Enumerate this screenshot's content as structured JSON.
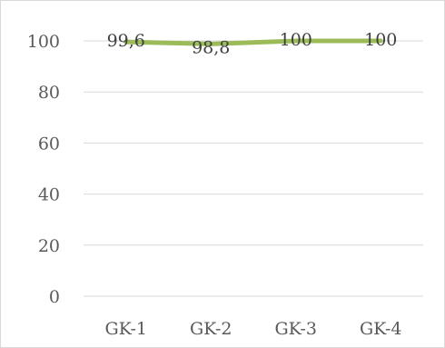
{
  "chart_data": {
    "type": "line",
    "categories": [
      "GK-1",
      "GK-2",
      "GK-3",
      "GK-4"
    ],
    "series": [
      {
        "values": [
          99.6,
          98.8,
          100,
          100
        ],
        "data_labels": [
          "99,6",
          "98,8",
          "100",
          "100"
        ],
        "color": "#9bbb59"
      }
    ],
    "yticks": [
      0,
      20,
      40,
      60,
      80,
      100
    ],
    "ylim": [
      0,
      100
    ],
    "grid": true,
    "gridline_color": "#d9d9d9",
    "legend": "none"
  }
}
